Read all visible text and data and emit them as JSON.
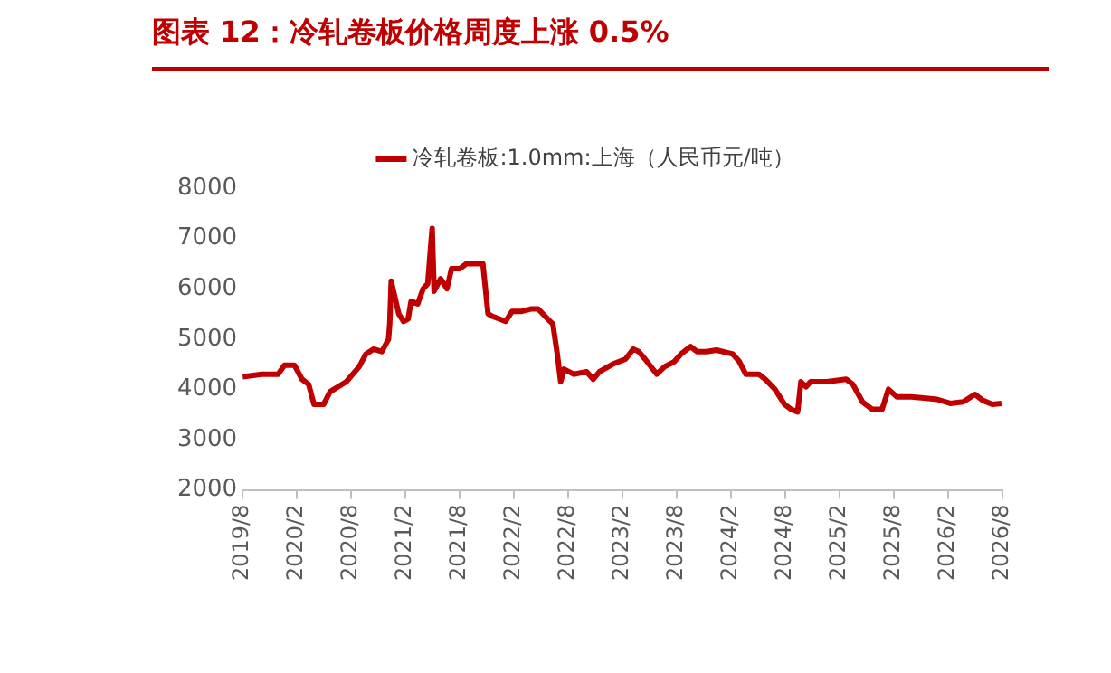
{
  "chart_data": {
    "type": "line",
    "title": "图表 12：冷轧卷板价格周度上涨 0.5%",
    "series": [
      {
        "name": "冷轧卷板:1.0mm:上海（人民币元/吨）",
        "color": "#c00000",
        "x": [
          "2019-08-01",
          "2019-10-05",
          "2019-11-29",
          "2019-12-20",
          "2020-01-23",
          "2020-02-18",
          "2020-03-10",
          "2020-03-28",
          "2020-04-30",
          "2020-05-21",
          "2020-07-15",
          "2020-08-28",
          "2020-09-20",
          "2020-10-15",
          "2020-11-13",
          "2020-12-05",
          "2020-12-09",
          "2020-12-14",
          "2021-01-09",
          "2021-01-25",
          "2021-02-10",
          "2021-02-20",
          "2021-03-12",
          "2021-03-30",
          "2021-04-15",
          "2021-04-30",
          "2021-05-06",
          "2021-05-28",
          "2021-06-19",
          "2021-07-04",
          "2021-08-02",
          "2021-08-24",
          "2021-10-18",
          "2021-11-05",
          "2021-11-20",
          "2021-12-12",
          "2022-01-03",
          "2022-01-25",
          "2022-02-27",
          "2022-03-30",
          "2022-04-21",
          "2022-05-23",
          "2022-06-10",
          "2022-06-25",
          "2022-07-06",
          "2022-07-17",
          "2022-08-19",
          "2022-10-02",
          "2022-10-24",
          "2022-11-15",
          "2022-12-29",
          "2023-02-11",
          "2023-03-07",
          "2023-03-25",
          "2023-04-16",
          "2023-05-25",
          "2023-06-21",
          "2023-07-23",
          "2023-08-15",
          "2023-09-17",
          "2023-10-08",
          "2023-11-10",
          "2023-12-13",
          "2024-02-07",
          "2024-02-29",
          "2024-03-20",
          "2024-05-03",
          "2024-05-25",
          "2024-06-27",
          "2024-07-29",
          "2024-08-21",
          "2024-09-12",
          "2024-09-23",
          "2024-10-10",
          "2024-10-25",
          "2024-12-19",
          "2025-02-23",
          "2025-03-15",
          "2025-04-17",
          "2025-05-20",
          "2025-06-22",
          "2025-07-13",
          "2025-08-11",
          "2025-09-29",
          "2025-12-25",
          "2026-02-08",
          "2026-03-21",
          "2026-04-30",
          "2026-05-26",
          "2026-06-28",
          "2026-07-28"
        ],
        "values": [
          4250,
          4300,
          4300,
          4480,
          4480,
          4200,
          4100,
          3700,
          3700,
          3950,
          4150,
          4450,
          4700,
          4800,
          4750,
          5000,
          5300,
          6150,
          5500,
          5350,
          5400,
          5750,
          5700,
          6000,
          6100,
          7200,
          5950,
          6200,
          6000,
          6400,
          6400,
          6500,
          6500,
          5500,
          5450,
          5400,
          5350,
          5550,
          5550,
          5600,
          5600,
          5400,
          5300,
          4700,
          4150,
          4400,
          4300,
          4350,
          4200,
          4350,
          4500,
          4600,
          4800,
          4750,
          4600,
          4300,
          4450,
          4550,
          4700,
          4850,
          4750,
          4750,
          4780,
          4700,
          4550,
          4300,
          4300,
          4200,
          4000,
          3700,
          3600,
          3550,
          4150,
          4050,
          4150,
          4150,
          4200,
          4100,
          3750,
          3600,
          3600,
          4000,
          3850,
          3850,
          3800,
          3720,
          3750,
          3900,
          3780,
          3700,
          3720
        ]
      }
    ],
    "xlim": [
      "2019-08",
      "2026-08"
    ],
    "xticks": [
      {
        "value": "2019-08",
        "label": "2019/8"
      },
      {
        "value": "2020-02",
        "label": "2020/2"
      },
      {
        "value": "2020-08",
        "label": "2020/8"
      },
      {
        "value": "2021-02",
        "label": "2021/2"
      },
      {
        "value": "2021-08",
        "label": "2021/8"
      },
      {
        "value": "2022-02",
        "label": "2022/2"
      },
      {
        "value": "2022-08",
        "label": "2022/8"
      },
      {
        "value": "2023-02",
        "label": "2023/2"
      },
      {
        "value": "2023-08",
        "label": "2023/8"
      },
      {
        "value": "2024-02",
        "label": "2024/2"
      },
      {
        "value": "2024-08",
        "label": "2024/8"
      },
      {
        "value": "2025-02",
        "label": "2025/2"
      },
      {
        "value": "2025-08",
        "label": "2025/8"
      },
      {
        "value": "2026-02",
        "label": "2026/2"
      },
      {
        "value": "2026-08",
        "label": "2026/8"
      }
    ],
    "ylim": [
      2000,
      8000
    ],
    "yticks": [
      2000,
      3000,
      4000,
      5000,
      6000,
      7000,
      8000
    ],
    "grid": false,
    "legend": "top",
    "marker": "none",
    "line_style": "solid"
  }
}
